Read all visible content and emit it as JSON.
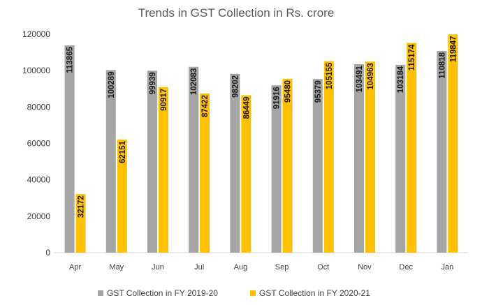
{
  "chart_data": {
    "type": "bar",
    "title": "Trends in GST Collection in Rs. crore",
    "categories": [
      "Apr",
      "May",
      "Jun",
      "Jul",
      "Aug",
      "Sep",
      "Oct",
      "Nov",
      "Dec",
      "Jan"
    ],
    "series": [
      {
        "name": "GST Collection in FY 2019-20",
        "color": "#a5a5a5",
        "values": [
          113865,
          100289,
          99939,
          102083,
          98202,
          91916,
          95379,
          103491,
          103184,
          110818
        ]
      },
      {
        "name": "GST Collection in FY 2020-21",
        "color": "#ffc000",
        "values": [
          32172,
          62151,
          90917,
          87422,
          86449,
          95480,
          105155,
          104963,
          115174,
          119847
        ]
      }
    ],
    "ylim": [
      0,
      120000
    ],
    "yticks": [
      0,
      20000,
      40000,
      60000,
      80000,
      100000,
      120000
    ],
    "grid": false,
    "legend_position": "bottom"
  }
}
